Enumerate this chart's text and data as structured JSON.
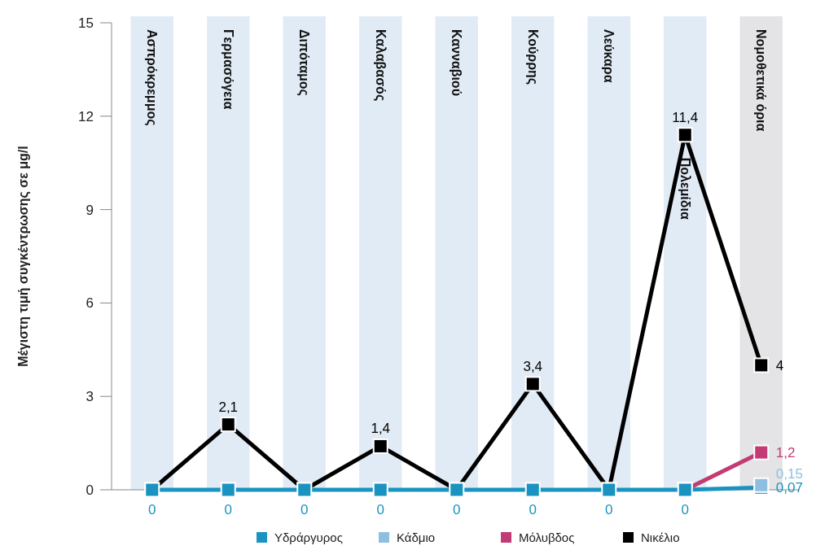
{
  "chart_data": {
    "type": "line",
    "ylabel": "Μέγιστη  τιμή συγκέντρωσης σε μg/l",
    "categories": [
      "Ασπρόκρεμμος",
      "Γερμασόγεια",
      "Διπόταμος",
      "Καλαβασός",
      "Κανναβιού",
      "Κούρρης",
      "Λεύκαρα",
      "Πολεμίδια",
      "Νομοθετικά όρια"
    ],
    "series": [
      {
        "name": "Υδράργυρος",
        "color": "#1a93c0",
        "values": [
          0,
          0,
          0,
          0,
          0,
          0,
          0,
          0,
          0.07
        ],
        "value_labels": [
          "0",
          "0",
          "0",
          "0",
          "0",
          "0",
          "0",
          "0",
          "0,07"
        ]
      },
      {
        "name": "Κάδμιο",
        "color": "#8fbfdf",
        "values": [
          null,
          null,
          null,
          null,
          null,
          null,
          null,
          null,
          0.15
        ],
        "value_labels": [
          null,
          null,
          null,
          null,
          null,
          null,
          null,
          null,
          "0,15"
        ]
      },
      {
        "name": "Μόλυβδος",
        "color": "#c23b74",
        "values": [
          null,
          null,
          null,
          null,
          null,
          null,
          null,
          0,
          1.2
        ],
        "value_labels": [
          null,
          null,
          null,
          null,
          null,
          null,
          null,
          null,
          "1,2"
        ]
      },
      {
        "name": "Νικέλιο",
        "color": "#000000",
        "values": [
          0,
          2.1,
          0,
          1.4,
          0,
          3.4,
          0,
          11.4,
          4
        ],
        "value_labels": [
          null,
          "2,1",
          null,
          "1,4",
          null,
          "3,4",
          null,
          "11,4",
          "4"
        ]
      }
    ],
    "bands": [
      {
        "axis": "x",
        "from": "Ασπρόκρεμμος",
        "to": "Ασπρόκρεμμος",
        "color": "#e1ebf5"
      },
      {
        "axis": "x",
        "from": "Γερμασόγεια",
        "to": "Γερμασόγεια",
        "color": "#e1ebf5"
      },
      {
        "axis": "x",
        "from": "Διπόταμος",
        "to": "Διπόταμος",
        "color": "#e1ebf5"
      },
      {
        "axis": "x",
        "from": "Καλαβασός",
        "to": "Καλαβασός",
        "color": "#e1ebf5"
      },
      {
        "axis": "x",
        "from": "Κανναβιού",
        "to": "Κανναβιού",
        "color": "#e1ebf5"
      },
      {
        "axis": "x",
        "from": "Κούρρης",
        "to": "Κούρρης",
        "color": "#e1ebf5"
      },
      {
        "axis": "x",
        "from": "Λεύκαρα",
        "to": "Λεύκαρα",
        "color": "#e1ebf5"
      },
      {
        "axis": "x",
        "from": "Πολεμίδια",
        "to": "Πολεμίδια",
        "color": "#e1ebf5"
      },
      {
        "axis": "x",
        "from": "Νομοθετικά όρια",
        "to": "Νομοθετικά όρια",
        "color": "#e4e4e6"
      }
    ],
    "ylim": [
      0,
      15
    ],
    "yticks": [
      0,
      3,
      6,
      9,
      12,
      15
    ],
    "grid": false,
    "legend": "bottom",
    "marker": "square",
    "line_style": "solid"
  }
}
